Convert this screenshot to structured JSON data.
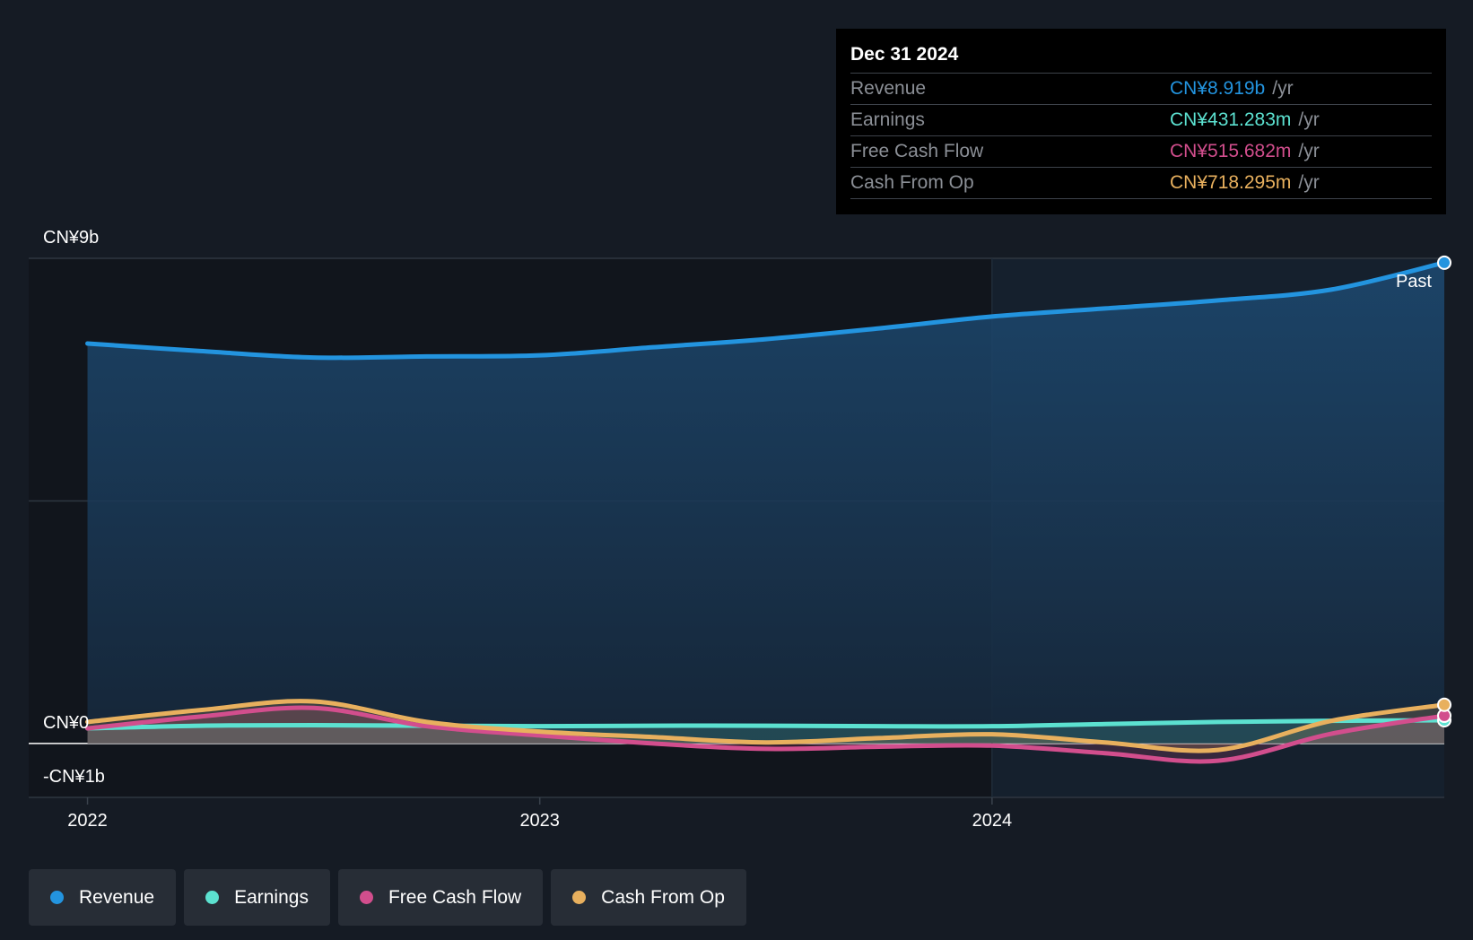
{
  "chart_data": {
    "type": "area",
    "title": "",
    "xlabel": "",
    "ylabel": "",
    "y_tick_labels": [
      {
        "value": 9,
        "label": "CN¥9b"
      },
      {
        "value": 0,
        "label": "CN¥0"
      },
      {
        "value": -1,
        "label": "-CN¥1b"
      }
    ],
    "x_tick_labels": [
      {
        "value": 2022.0,
        "label": "2022"
      },
      {
        "value": 2023.0,
        "label": "2023"
      },
      {
        "value": 2024.0,
        "label": "2024"
      }
    ],
    "xlim": [
      2021.87,
      2025.0
    ],
    "ylim": [
      -1.0,
      9.0
    ],
    "x_unit": "year",
    "y_unit": "CN¥ billions",
    "forecast_split": 2024.0,
    "past_label": "Past",
    "legend_placement": "bottom-left",
    "series": [
      {
        "name": "Revenue",
        "color": "#2394df",
        "x": [
          2022.0,
          2022.25,
          2022.5,
          2022.75,
          2023.0,
          2023.25,
          2023.5,
          2023.75,
          2024.0,
          2024.25,
          2024.5,
          2024.75,
          2025.0
        ],
        "values": [
          7.42,
          7.28,
          7.16,
          7.18,
          7.2,
          7.35,
          7.5,
          7.7,
          7.92,
          8.07,
          8.22,
          8.42,
          8.919
        ]
      },
      {
        "name": "Earnings",
        "color": "#5ce1d0",
        "x": [
          2022.0,
          2022.25,
          2022.5,
          2022.75,
          2023.0,
          2023.25,
          2023.5,
          2023.75,
          2024.0,
          2024.25,
          2024.5,
          2024.75,
          2025.0
        ],
        "values": [
          0.28,
          0.33,
          0.34,
          0.33,
          0.32,
          0.33,
          0.33,
          0.32,
          0.32,
          0.36,
          0.4,
          0.42,
          0.431283
        ]
      },
      {
        "name": "Free Cash Flow",
        "color": "#d24e8d",
        "x": [
          2022.0,
          2022.25,
          2022.5,
          2022.75,
          2023.0,
          2023.25,
          2023.5,
          2023.75,
          2024.0,
          2024.25,
          2024.5,
          2024.75,
          2025.0
        ],
        "values": [
          0.28,
          0.5,
          0.66,
          0.32,
          0.15,
          0.0,
          -0.1,
          -0.06,
          -0.04,
          -0.18,
          -0.32,
          0.18,
          0.515682
        ]
      },
      {
        "name": "Cash From Op",
        "color": "#e8b05e",
        "x": [
          2022.0,
          2022.25,
          2022.5,
          2022.75,
          2023.0,
          2023.25,
          2023.5,
          2023.75,
          2024.0,
          2024.25,
          2024.5,
          2024.75,
          2025.0
        ],
        "values": [
          0.4,
          0.62,
          0.78,
          0.4,
          0.22,
          0.12,
          0.02,
          0.1,
          0.17,
          0.02,
          -0.12,
          0.42,
          0.718295
        ]
      }
    ]
  },
  "tooltip": {
    "date": "Dec 31 2024",
    "rows": [
      {
        "name": "Revenue",
        "value": "CN¥8.919b",
        "unit": "/yr",
        "color": "#2394df"
      },
      {
        "name": "Earnings",
        "value": "CN¥431.283m",
        "unit": "/yr",
        "color": "#5ce1d0"
      },
      {
        "name": "Free Cash Flow",
        "value": "CN¥515.682m",
        "unit": "/yr",
        "color": "#d24e8d"
      },
      {
        "name": "Cash From Op",
        "value": "CN¥718.295m",
        "unit": "/yr",
        "color": "#e8b05e"
      }
    ]
  },
  "legend": [
    {
      "label": "Revenue",
      "color": "#2394df"
    },
    {
      "label": "Earnings",
      "color": "#5ce1d0"
    },
    {
      "label": "Free Cash Flow",
      "color": "#d24e8d"
    },
    {
      "label": "Cash From Op",
      "color": "#e8b05e"
    }
  ]
}
